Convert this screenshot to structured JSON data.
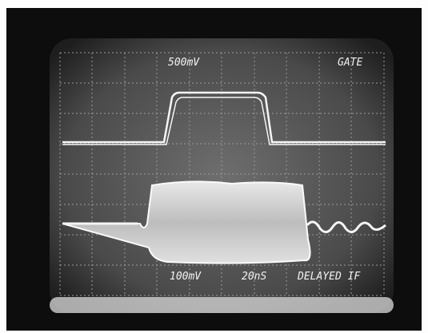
{
  "channel_1": {
    "scale": "500mV",
    "label": "GATE"
  },
  "channel_2": {
    "scale": "100mV",
    "label": "DELAYED IF"
  },
  "timebase": "20nS"
}
